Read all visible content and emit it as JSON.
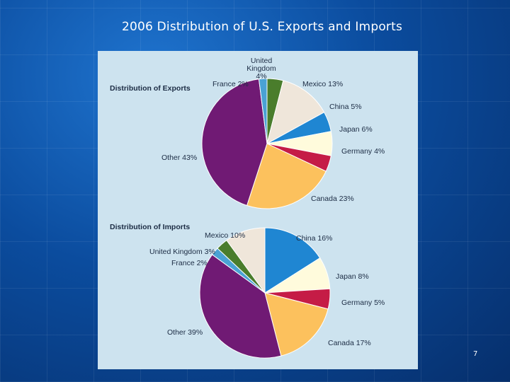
{
  "slide": {
    "title": "2006 Distribution of U.S. Exports and Imports",
    "page_number": "7"
  },
  "chart_data": [
    {
      "type": "pie",
      "title": "Distribution of Exports",
      "slices": [
        {
          "name": "United Kingdom",
          "value": 4,
          "label": [
            "United",
            "Kingdom",
            "4%"
          ],
          "color": "#4a7d2c"
        },
        {
          "name": "Mexico",
          "value": 13,
          "label": [
            "Mexico 13%"
          ],
          "color": "#efe6da"
        },
        {
          "name": "China",
          "value": 5,
          "label": [
            "China 5%"
          ],
          "color": "#1f86d2"
        },
        {
          "name": "Japan",
          "value": 6,
          "label": [
            "Japan 6%"
          ],
          "color": "#fffbdc"
        },
        {
          "name": "Germany",
          "value": 4,
          "label": [
            "Germany 4%"
          ],
          "color": "#c51c46"
        },
        {
          "name": "Canada",
          "value": 23,
          "label": [
            "Canada 23%"
          ],
          "color": "#fcc15d"
        },
        {
          "name": "Other",
          "value": 43,
          "label": [
            "Other 43%"
          ],
          "color": "#701a74"
        },
        {
          "name": "France",
          "value": 2,
          "label": [
            "France 2%"
          ],
          "color": "#4aa2d4"
        }
      ]
    },
    {
      "type": "pie",
      "title": "Distribution of Imports",
      "slices": [
        {
          "name": "China",
          "value": 16,
          "label": [
            "China 16%"
          ],
          "color": "#1f86d2"
        },
        {
          "name": "Japan",
          "value": 8,
          "label": [
            "Japan 8%"
          ],
          "color": "#fffbdc"
        },
        {
          "name": "Germany",
          "value": 5,
          "label": [
            "Germany 5%"
          ],
          "color": "#c51c46"
        },
        {
          "name": "Canada",
          "value": 17,
          "label": [
            "Canada 17%"
          ],
          "color": "#fcc15d"
        },
        {
          "name": "Other",
          "value": 39,
          "label": [
            "Other 39%"
          ],
          "color": "#701a74"
        },
        {
          "name": "France",
          "value": 2,
          "label": [
            "France 2%"
          ],
          "color": "#4aa2d4"
        },
        {
          "name": "United Kingdom",
          "value": 3,
          "label": [
            "United Kingdom 3%"
          ],
          "color": "#4a7d2c"
        },
        {
          "name": "Mexico",
          "value": 10,
          "label": [
            "Mexico 10%"
          ],
          "color": "#efe6da"
        }
      ]
    }
  ]
}
